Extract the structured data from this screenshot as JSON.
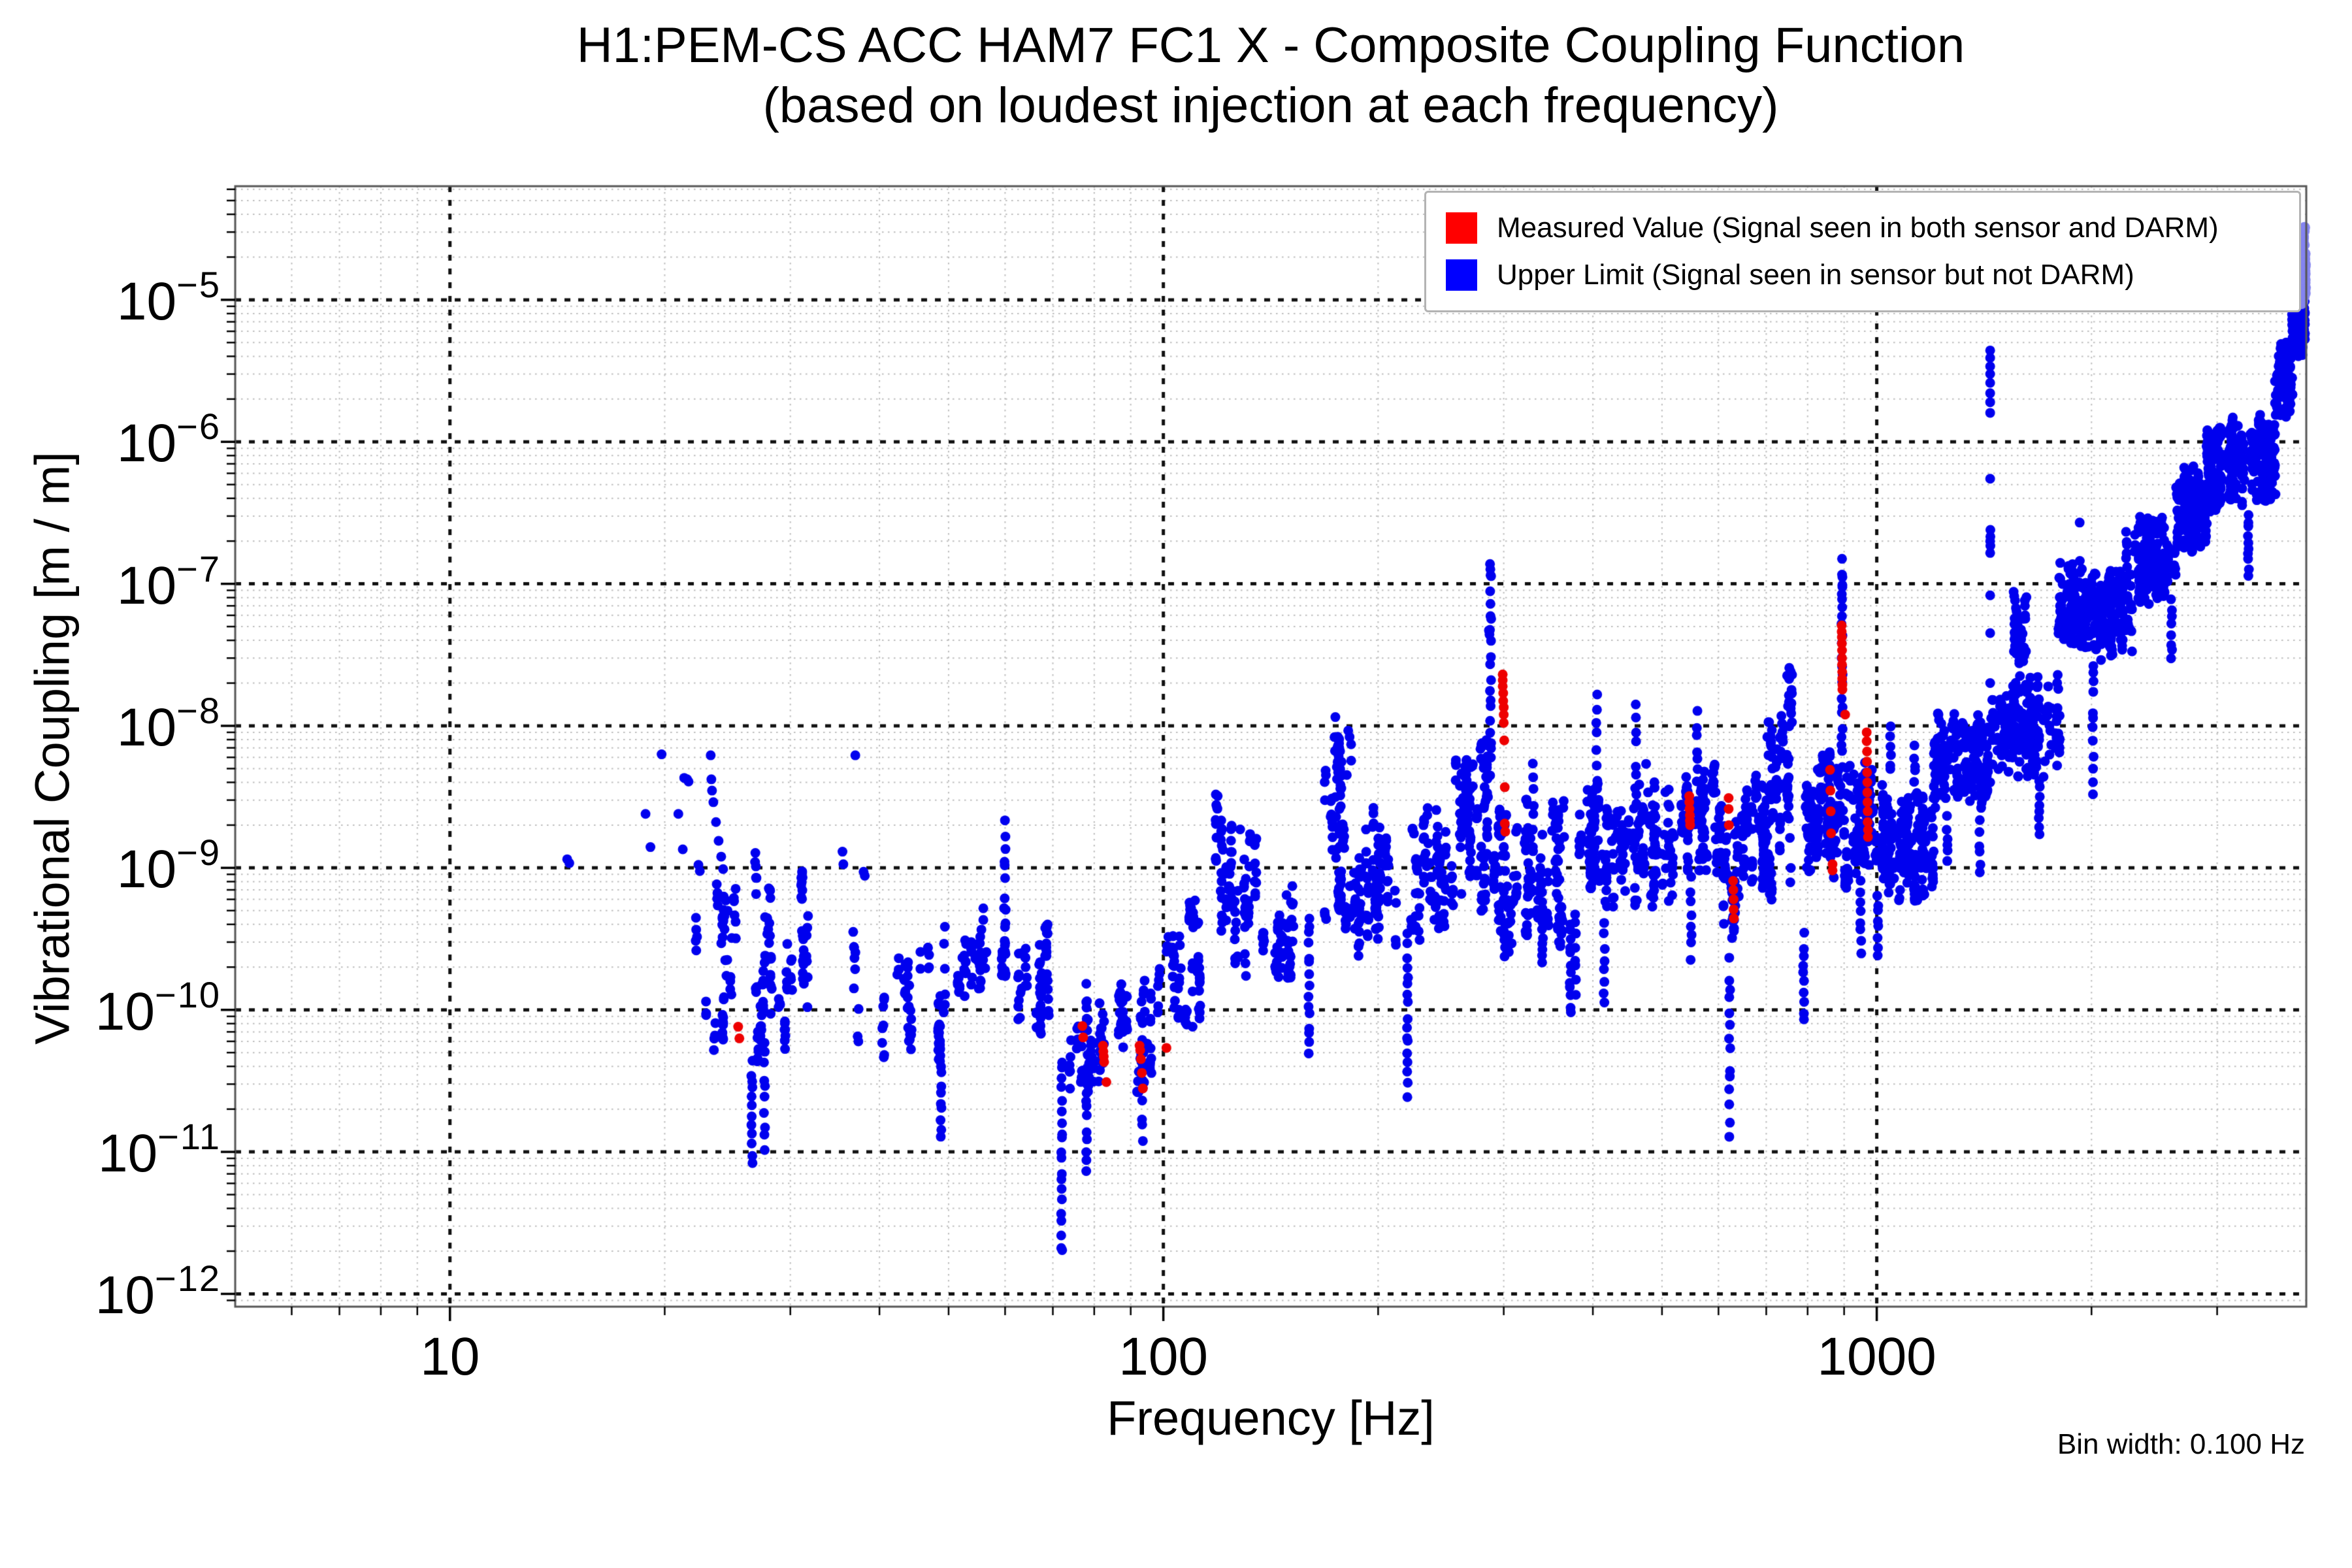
{
  "title": "H1:PEM-CS ACC HAM7 FC1 X - Composite Coupling Function",
  "subtitle": "(based on loudest injection at each frequency)",
  "bin_width_note": "Bin width: 0.100 Hz",
  "legend": {
    "measured": {
      "label": "Measured Value (Signal seen in both sensor and DARM)",
      "color": "#ff0000"
    },
    "upper": {
      "label": "Upper Limit (Signal seen in sensor but not DARM)",
      "color": "#0000ff"
    }
  },
  "axes": {
    "xlabel": "Frequency [Hz]",
    "ylabel": "Vibrational Coupling [m / m]",
    "xlim": [
      5,
      4000
    ],
    "ylim_log": [
      -12.09,
      -4.2
    ],
    "x_ticks": [
      {
        "v": 10,
        "label": "10"
      },
      {
        "v": 100,
        "label": "100"
      },
      {
        "v": 1000,
        "label": "1000"
      }
    ],
    "y_tick_exponents": [
      -5,
      -6,
      -7,
      -8,
      -9,
      -10,
      -11,
      -12
    ],
    "grid": {
      "major_color": "#111111",
      "minor_color": "#bdbdbd",
      "frame_color": "#555555"
    }
  },
  "chart_data": {
    "type": "scatter",
    "x_scale": "log",
    "y_scale": "log",
    "title": "H1:PEM-CS ACC HAM7 FC1 X - Composite Coupling Function (based on loudest injection at each frequency)",
    "xlabel": "Frequency [Hz]",
    "ylabel": "Vibrational Coupling [m / m]",
    "legend_position": "upper right",
    "grid": "log decades dashed black, minors dotted grey",
    "marker_radius": 7.5,
    "colors": {
      "blue": "#0000ee",
      "red": "#ee0000",
      "edge": "#8585f0"
    },
    "seed": 1337,
    "bands_blue": [
      [
        22,
        33,
        160,
        -10.45,
        -8.8
      ],
      [
        33,
        50,
        80,
        -10.45,
        -9.2
      ],
      [
        50,
        61,
        55,
        -10.05,
        -9.25
      ],
      [
        61,
        70,
        60,
        -10.2,
        -9.35
      ],
      [
        74,
        80,
        45,
        -10.75,
        -9.8
      ],
      [
        80,
        100,
        95,
        -10.65,
        -9.7
      ],
      [
        100,
        117,
        70,
        -10.2,
        -9.15
      ],
      [
        117,
        135,
        95,
        -9.85,
        -8.45
      ],
      [
        135,
        155,
        60,
        -9.9,
        -9.0
      ],
      [
        167,
        186,
        115,
        -9.6,
        -7.9
      ],
      [
        186,
        212,
        100,
        -9.7,
        -8.5
      ],
      [
        222,
        250,
        85,
        -9.55,
        -8.55
      ],
      [
        250,
        285,
        125,
        -9.35,
        -7.95
      ],
      [
        288,
        310,
        70,
        -9.7,
        -8.4
      ],
      [
        310,
        365,
        120,
        -9.6,
        -8.45
      ],
      [
        382,
        412,
        70,
        -9.3,
        -8.3
      ],
      [
        412,
        540,
        180,
        -9.35,
        -8.35
      ],
      [
        540,
        610,
        95,
        -9.2,
        -8.2
      ],
      [
        610,
        640,
        50,
        -9.6,
        -8.4
      ],
      [
        640,
        700,
        85,
        -9.2,
        -8.3
      ],
      [
        700,
        770,
        115,
        -9.4,
        -7.55
      ],
      [
        790,
        850,
        85,
        -9.05,
        -8.1
      ],
      [
        850,
        888,
        65,
        -9.1,
        -8.0
      ],
      [
        895,
        960,
        85,
        -9.15,
        -8.2
      ],
      [
        960,
        1000,
        60,
        -9.0,
        -8.2
      ],
      [
        1000,
        1200,
        210,
        -9.25,
        -8.35
      ],
      [
        1200,
        1440,
        210,
        -8.6,
        -7.9
      ],
      [
        1450,
        1800,
        240,
        -8.4,
        -7.6
      ],
      [
        1560,
        1630,
        45,
        -7.6,
        -7.15
      ],
      [
        1800,
        2000,
        150,
        -7.5,
        -6.85
      ],
      [
        2000,
        2300,
        180,
        -7.55,
        -6.85
      ],
      [
        2300,
        2620,
        180,
        -7.15,
        -6.5
      ],
      [
        2620,
        2900,
        170,
        -6.8,
        -6.2
      ],
      [
        2900,
        3270,
        200,
        -6.5,
        -5.88
      ],
      [
        3340,
        3620,
        160,
        -6.45,
        -5.8
      ],
      [
        3620,
        3820,
        130,
        -5.85,
        -5.3
      ],
      [
        3820,
        3960,
        110,
        -5.4,
        -4.97
      ]
    ],
    "columns_blue": [
      [
        26.5,
        -11.1,
        -10.35,
        12
      ],
      [
        27.6,
        -11.0,
        -10.2,
        10
      ],
      [
        48.8,
        -10.95,
        -10.35,
        9
      ],
      [
        60,
        -9.65,
        -8.62,
        12
      ],
      [
        72,
        -11.75,
        -10.3,
        20
      ],
      [
        78,
        -11.2,
        -10.5,
        9
      ],
      [
        93.5,
        -10.95,
        -10.35,
        7
      ],
      [
        160,
        -10.35,
        -9.3,
        15
      ],
      [
        220,
        -10.62,
        -9.45,
        17
      ],
      [
        287.5,
        -8.35,
        -6.86,
        20
      ],
      [
        330,
        -8.95,
        -8.25,
        8
      ],
      [
        340,
        -9.7,
        -9.2,
        10
      ],
      [
        372,
        -10.05,
        -9.35,
        12
      ],
      [
        378,
        -9.9,
        -9.25,
        8
      ],
      [
        405,
        -8.6,
        -7.72,
        9
      ],
      [
        415,
        -9.97,
        -9.35,
        8
      ],
      [
        460,
        -8.6,
        -7.78,
        8
      ],
      [
        549,
        -9.65,
        -9.05,
        8
      ],
      [
        560,
        -8.55,
        -7.85,
        8
      ],
      [
        622,
        -10.9,
        -9.62,
        14
      ],
      [
        790,
        -10.1,
        -9.45,
        10
      ],
      [
        894,
        -8.3,
        -6.92,
        20
      ],
      [
        950,
        -9.63,
        -9.05,
        8
      ],
      [
        1003,
        -9.63,
        -9.15,
        8
      ],
      [
        1045,
        -8.35,
        -7.95,
        6
      ],
      [
        1130,
        -8.5,
        -8.1,
        6
      ],
      [
        1255,
        -9.0,
        -8.6,
        6
      ],
      [
        1395,
        -9.05,
        -8.65,
        6
      ],
      [
        1690,
        -8.78,
        -8.35,
        8
      ],
      [
        2010,
        -8.5,
        -7.5,
        12
      ],
      [
        2240,
        -7.0,
        -6.62,
        8
      ],
      [
        2590,
        -7.55,
        -7.1,
        8
      ],
      [
        2700,
        -6.35,
        -6.15,
        6
      ],
      [
        3150,
        -5.92,
        -5.82,
        4
      ],
      [
        3320,
        -6.95,
        -6.5,
        10
      ],
      [
        3975,
        -5.3,
        -5.0,
        10
      ]
    ],
    "explicit_blue": [
      [
        14.6,
        1.15e-09
      ],
      [
        14.7,
        1.08e-09
      ],
      [
        18.8,
        2.4e-09
      ],
      [
        19.1,
        1.4e-09
      ],
      [
        19.8,
        6.3e-09
      ],
      [
        20.9,
        2.4e-09
      ],
      [
        21.2,
        1.35e-09
      ],
      [
        21.3,
        4.3e-09
      ],
      [
        21.5,
        4.2e-09
      ],
      [
        21.6,
        4.05e-09
      ],
      [
        22.3,
        1.05e-09
      ],
      [
        22.4,
        9.5e-10
      ],
      [
        23.2,
        6.2e-09
      ],
      [
        23.25,
        4.2e-09
      ],
      [
        23.3,
        3.5e-09
      ],
      [
        23.4,
        2.9e-09
      ],
      [
        23.6,
        2.1e-09
      ],
      [
        23.8,
        1.55e-09
      ],
      [
        24.0,
        1.2e-09
      ],
      [
        24.15,
        9.8e-10
      ],
      [
        35.5,
        1.3e-09
      ],
      [
        35.6,
        1.06e-09
      ],
      [
        37.0,
        6.2e-09
      ],
      [
        38.0,
        9.4e-10
      ],
      [
        38.15,
        8.8e-10
      ],
      [
        54.5,
        2.3e-10
      ],
      [
        55.0,
        2.2e-10
      ],
      [
        59.8,
        5.2e-10
      ],
      [
        475,
        5.4e-09
      ],
      [
        478,
        3.4e-09
      ],
      [
        286,
        4.7e-08
      ],
      [
        286.5,
        4.4e-08
      ],
      [
        287,
        1.38e-07
      ],
      [
        287.5,
        1.15e-07
      ],
      [
        894,
        1.5e-07
      ],
      [
        894,
        1.16e-07
      ],
      [
        895,
        9.5e-08
      ],
      [
        894,
        7.8e-08
      ],
      [
        1442,
        4.4e-06
      ],
      [
        1442,
        3.9e-06
      ],
      [
        1442,
        3.4e-06
      ],
      [
        1442,
        3e-06
      ],
      [
        1442,
        2.6e-06
      ],
      [
        1442,
        2.2e-06
      ],
      [
        1442,
        1.9e-06
      ],
      [
        1442,
        1.6e-06
      ],
      [
        1442,
        5.5e-07
      ],
      [
        1443,
        2.4e-07
      ],
      [
        1443,
        2.15e-07
      ],
      [
        1442,
        2e-07
      ],
      [
        1443,
        1.85e-07
      ],
      [
        1442,
        1.65e-07
      ],
      [
        1442,
        8.3e-08
      ],
      [
        1442,
        4.5e-08
      ],
      [
        1442,
        2e-08
      ],
      [
        1442,
        9e-09
      ],
      [
        1442,
        4e-09
      ],
      [
        1925,
        2.7e-07
      ],
      [
        1926,
        1.45e-07
      ],
      [
        1925,
        6.3e-08
      ],
      [
        1926,
        4e-08
      ]
    ],
    "red_points": [
      [
        25.35,
        7.6e-11
      ],
      [
        25.45,
        6.3e-11
      ],
      [
        77.0,
        7.7e-11
      ],
      [
        77.2,
        6.4e-11
      ],
      [
        82.3,
        5.6e-11
      ],
      [
        82.4,
        5.1e-11
      ],
      [
        82.5,
        4.7e-11
      ],
      [
        82.6,
        4.3e-11
      ],
      [
        83.2,
        3.1e-11
      ],
      [
        92.6,
        5.6e-11
      ],
      [
        92.8,
        5.2e-11
      ],
      [
        93.0,
        4.5e-11
      ],
      [
        93.3,
        3.6e-11
      ],
      [
        93.6,
        2.8e-11
      ],
      [
        101.0,
        5.4e-11
      ],
      [
        299,
        2.3e-08
      ],
      [
        299,
        2.1e-08
      ],
      [
        299,
        1.9e-08
      ],
      [
        299.5,
        1.7e-08
      ],
      [
        299.5,
        1.5e-08
      ],
      [
        300,
        1.35e-08
      ],
      [
        300,
        1.2e-08
      ],
      [
        300,
        1.05e-08
      ],
      [
        300.5,
        7.9e-09
      ],
      [
        301,
        3.7e-09
      ],
      [
        301,
        2.05e-09
      ],
      [
        301.5,
        1.8e-09
      ],
      [
        546,
        3.2e-09
      ],
      [
        546,
        2.9e-09
      ],
      [
        546.5,
        2.6e-09
      ],
      [
        547,
        2.35e-09
      ],
      [
        547,
        2.15e-09
      ],
      [
        547.5,
        2e-09
      ],
      [
        620,
        3.1e-09
      ],
      [
        620,
        2.6e-09
      ],
      [
        620.5,
        2e-09
      ],
      [
        629,
        8.1e-10
      ],
      [
        629.5,
        7e-10
      ],
      [
        630,
        6e-10
      ],
      [
        630,
        5.1e-10
      ],
      [
        630.5,
        4.4e-10
      ],
      [
        860,
        4.9e-09
      ],
      [
        861,
        3.5e-09
      ],
      [
        862,
        2.5e-09
      ],
      [
        863,
        1.75e-09
      ],
      [
        867,
        1.06e-09
      ],
      [
        867,
        9.6e-10
      ],
      [
        893,
        5.1e-08
      ],
      [
        893,
        4.6e-08
      ],
      [
        893.5,
        4.2e-08
      ],
      [
        893.5,
        3.8e-08
      ],
      [
        894,
        3.4e-08
      ],
      [
        894,
        3e-08
      ],
      [
        894,
        2.7e-08
      ],
      [
        894.5,
        2.4e-08
      ],
      [
        894.5,
        2.15e-08
      ],
      [
        895,
        1.95e-08
      ],
      [
        895,
        1.8e-08
      ],
      [
        903,
        1.2e-08
      ],
      [
        968,
        9e-09
      ],
      [
        968,
        7.8e-09
      ],
      [
        969,
        6.6e-09
      ],
      [
        969,
        5.6e-09
      ],
      [
        969.5,
        4.7e-09
      ],
      [
        970,
        4e-09
      ],
      [
        970,
        3.4e-09
      ],
      [
        970.5,
        2.9e-09
      ],
      [
        971,
        2.5e-09
      ],
      [
        971,
        2.1e-09
      ],
      [
        972,
        1.85e-09
      ],
      [
        972,
        1.65e-09
      ]
    ],
    "edge_column": {
      "f0": 3900,
      "f1": 3990,
      "lo": -5.03,
      "hi": -4.49,
      "n": 90
    }
  }
}
